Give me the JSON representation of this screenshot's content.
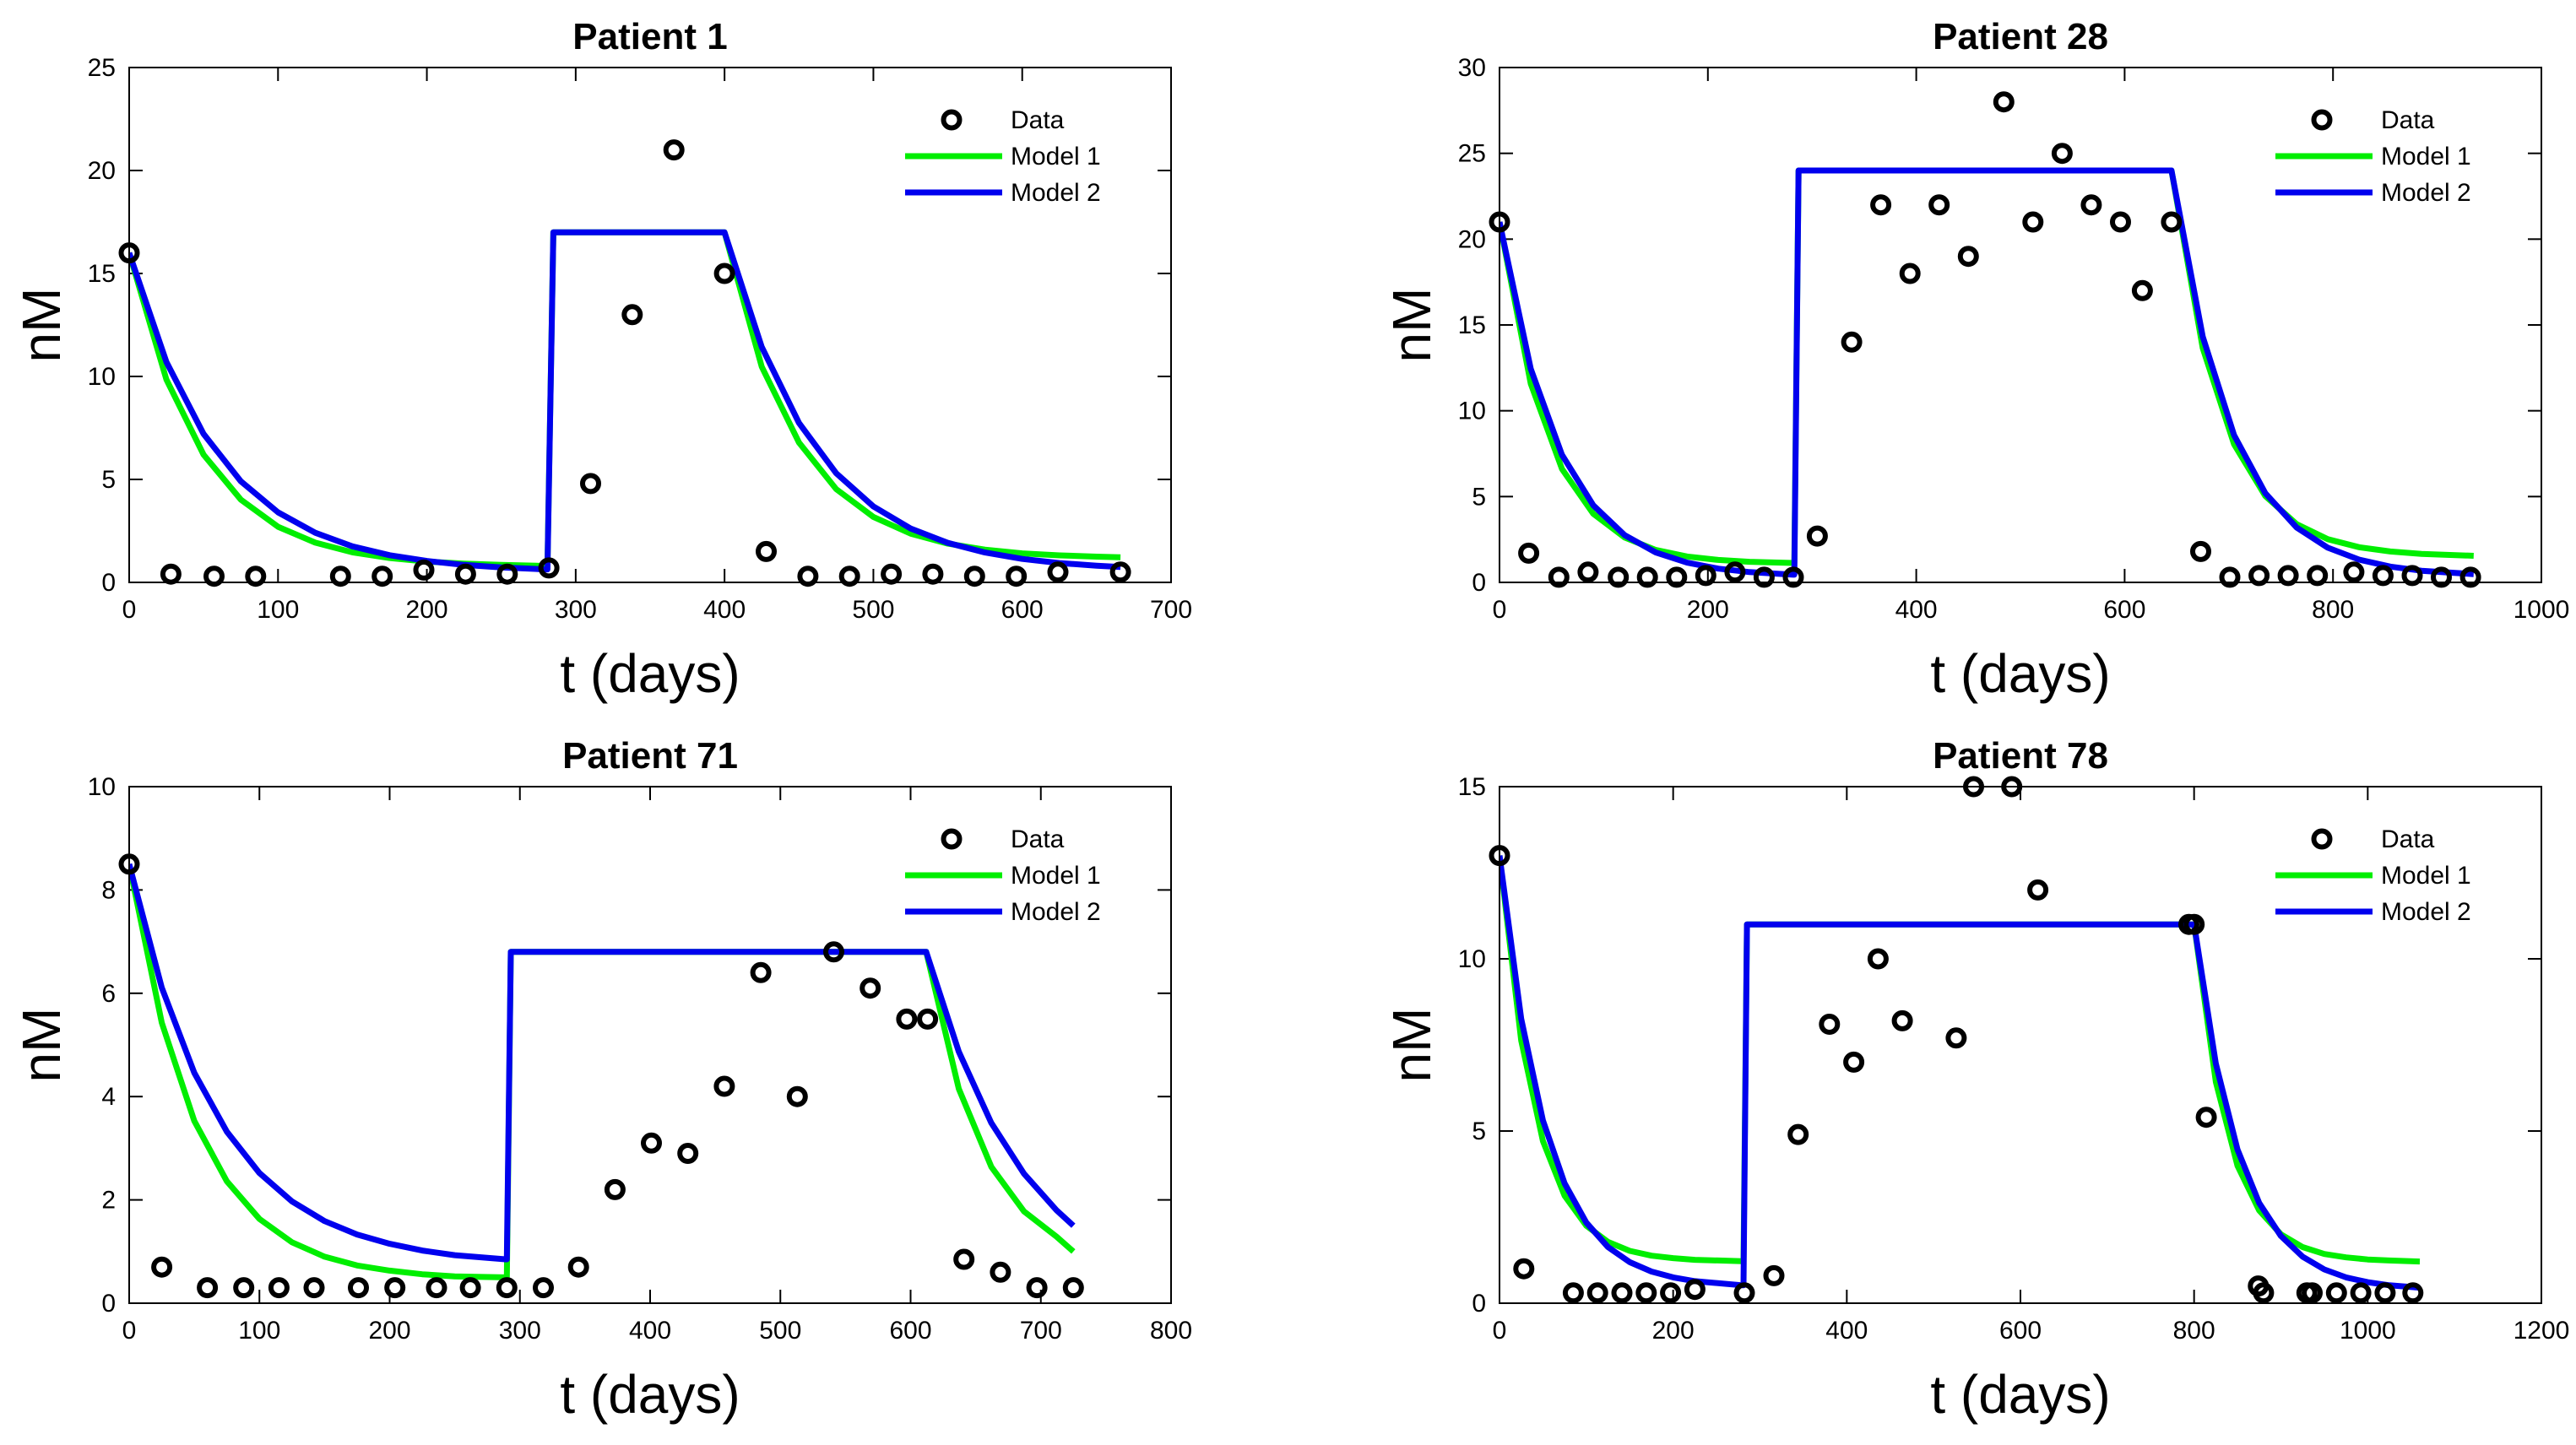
{
  "chart_data": [
    {
      "type": "line",
      "title": "Patient 1",
      "xlabel": "t (days)",
      "ylabel": "nM",
      "xlim": [
        0,
        700
      ],
      "ylim": [
        0,
        25
      ],
      "xticks": [
        0,
        100,
        200,
        300,
        400,
        500,
        600,
        700
      ],
      "yticks": [
        0,
        5,
        10,
        15,
        20,
        25
      ],
      "legend": [
        "Data",
        "Model 1",
        "Model 2"
      ],
      "legend_position": "top-right",
      "series": [
        {
          "name": "Data",
          "kind": "scatter",
          "color": "#000000",
          "x": [
            0,
            28,
            57,
            85,
            142,
            170,
            198,
            226,
            254,
            282,
            310,
            338,
            366,
            400,
            428,
            456,
            484,
            512,
            540,
            568,
            596,
            624,
            666
          ],
          "y": [
            16,
            0.4,
            0.3,
            0.3,
            0.3,
            0.3,
            0.6,
            0.4,
            0.4,
            0.7,
            4.8,
            13,
            21,
            15,
            1.5,
            0.3,
            0.3,
            0.4,
            0.4,
            0.3,
            0.3,
            0.5,
            0.5
          ]
        },
        {
          "name": "Model 1",
          "kind": "line",
          "color": "#00ee00",
          "x": [
            0,
            25,
            50,
            75,
            100,
            125,
            150,
            175,
            200,
            225,
            250,
            280,
            281,
            285,
            400,
            425,
            450,
            475,
            500,
            525,
            550,
            575,
            600,
            625,
            650,
            666
          ],
          "y": [
            16,
            9.85,
            6.2,
            4.02,
            2.7,
            1.93,
            1.46,
            1.18,
            1.01,
            0.91,
            0.85,
            0.8,
            0.8,
            17,
            17,
            10.47,
            6.79,
            4.53,
            3.18,
            2.37,
            1.88,
            1.59,
            1.41,
            1.31,
            1.25,
            1.22
          ]
        },
        {
          "name": "Model 2",
          "kind": "line",
          "color": "#0000ee",
          "x": [
            0,
            25,
            50,
            75,
            100,
            125,
            150,
            175,
            200,
            225,
            250,
            280,
            281,
            285,
            400,
            425,
            450,
            475,
            500,
            525,
            550,
            575,
            600,
            625,
            650,
            666
          ],
          "y": [
            16,
            10.7,
            7.21,
            4.91,
            3.4,
            2.41,
            1.75,
            1.32,
            1.04,
            0.85,
            0.73,
            0.63,
            0.63,
            17,
            17,
            11.43,
            7.74,
            5.3,
            3.69,
            2.62,
            1.92,
            1.45,
            1.14,
            0.94,
            0.81,
            0.75
          ]
        }
      ]
    },
    {
      "type": "line",
      "title": "Patient 28",
      "xlabel": "t (days)",
      "ylabel": "nM",
      "xlim": [
        0,
        1000
      ],
      "ylim": [
        0,
        30
      ],
      "xticks": [
        0,
        200,
        400,
        600,
        800,
        1000
      ],
      "yticks": [
        0,
        5,
        10,
        15,
        20,
        25,
        30
      ],
      "legend": [
        "Data",
        "Model 1",
        "Model 2"
      ],
      "legend_position": "top-right",
      "series": [
        {
          "name": "Data",
          "kind": "scatter",
          "color": "#000000",
          "x": [
            0,
            28,
            57,
            85,
            114,
            142,
            170,
            198,
            226,
            254,
            282,
            305,
            338,
            366,
            394,
            422,
            450,
            484,
            512,
            540,
            568,
            596,
            617,
            645,
            673,
            701,
            729,
            757,
            785,
            820,
            848,
            876,
            904,
            932
          ],
          "y": [
            21,
            1.7,
            0.3,
            0.6,
            0.3,
            0.3,
            0.3,
            0.4,
            0.6,
            0.3,
            0.3,
            2.7,
            14,
            22,
            18,
            22,
            19,
            28,
            21,
            25,
            22,
            21,
            17,
            21,
            1.8,
            0.3,
            0.4,
            0.4,
            0.4,
            0.6,
            0.4,
            0.4,
            0.3,
            0.3
          ]
        },
        {
          "name": "Model 1",
          "kind": "line",
          "color": "#00ee00",
          "x": [
            0,
            30,
            60,
            90,
            120,
            150,
            180,
            210,
            240,
            282,
            283,
            287,
            645,
            675,
            705,
            735,
            765,
            795,
            825,
            855,
            885,
            935
          ],
          "y": [
            21,
            11.58,
            6.61,
            4.0,
            2.62,
            1.89,
            1.51,
            1.31,
            1.2,
            1.13,
            1.13,
            24,
            24,
            13.65,
            8.05,
            5.03,
            3.4,
            2.52,
            2.05,
            1.8,
            1.66,
            1.55
          ]
        },
        {
          "name": "Model 2",
          "kind": "line",
          "color": "#0000ee",
          "x": [
            0,
            30,
            60,
            90,
            120,
            150,
            180,
            210,
            240,
            282,
            283,
            287,
            645,
            675,
            705,
            735,
            765,
            795,
            825,
            855,
            885,
            935
          ],
          "y": [
            21,
            12.45,
            7.43,
            4.49,
            2.76,
            1.74,
            1.15,
            0.8,
            0.6,
            0.45,
            0.45,
            24,
            24,
            14.32,
            8.58,
            5.2,
            3.2,
            2.02,
            1.33,
            0.92,
            0.68,
            0.48
          ]
        }
      ]
    },
    {
      "type": "line",
      "title": "Patient 71",
      "xlabel": "t (days)",
      "ylabel": "nM",
      "xlim": [
        0,
        800
      ],
      "ylim": [
        0,
        10
      ],
      "xticks": [
        0,
        100,
        200,
        300,
        400,
        500,
        600,
        700,
        800
      ],
      "yticks": [
        0,
        2,
        4,
        6,
        8,
        10
      ],
      "legend": [
        "Data",
        "Model 1",
        "Model 2"
      ],
      "legend_position": "top-right",
      "series": [
        {
          "name": "Data",
          "kind": "scatter",
          "color": "#000000",
          "x": [
            0,
            25,
            60,
            88,
            115,
            142,
            176,
            204,
            236,
            262,
            290,
            318,
            345,
            373,
            401,
            429,
            457,
            485,
            513,
            541,
            569,
            597,
            613,
            641,
            669,
            697,
            725
          ],
          "y": [
            8.5,
            0.7,
            0.3,
            0.3,
            0.3,
            0.3,
            0.3,
            0.3,
            0.3,
            0.3,
            0.3,
            0.3,
            0.7,
            2.2,
            3.1,
            2.9,
            4.2,
            6.4,
            4.0,
            6.8,
            6.1,
            5.5,
            5.5,
            0.85,
            0.6,
            0.3,
            0.3
          ]
        },
        {
          "name": "Model 1",
          "kind": "line",
          "color": "#00ee00",
          "x": [
            0,
            25,
            50,
            75,
            100,
            125,
            150,
            175,
            200,
            225,
            250,
            289,
            290,
            293,
            612,
            637,
            662,
            687,
            712,
            725
          ],
          "y": [
            8.5,
            5.43,
            3.53,
            2.36,
            1.63,
            1.18,
            0.9,
            0.73,
            0.63,
            0.56,
            0.52,
            0.5,
            0.5,
            6.8,
            6.8,
            4.15,
            2.64,
            1.78,
            1.29,
            1.0
          ]
        },
        {
          "name": "Model 2",
          "kind": "line",
          "color": "#0000ee",
          "x": [
            0,
            25,
            50,
            75,
            100,
            125,
            150,
            175,
            200,
            225,
            250,
            289,
            290,
            293,
            612,
            637,
            662,
            687,
            712,
            725
          ],
          "y": [
            8.5,
            6.11,
            4.46,
            3.32,
            2.52,
            1.97,
            1.59,
            1.33,
            1.15,
            1.02,
            0.93,
            0.85,
            0.85,
            6.8,
            6.8,
            4.87,
            3.49,
            2.51,
            1.8,
            1.5
          ]
        }
      ]
    },
    {
      "type": "line",
      "title": "Patient 78",
      "xlabel": "t (days)",
      "ylabel": "nM",
      "xlim": [
        0,
        1200
      ],
      "ylim": [
        0,
        15
      ],
      "xticks": [
        0,
        200,
        400,
        600,
        800,
        1000,
        1200
      ],
      "yticks": [
        0,
        5,
        10,
        15
      ],
      "legend": [
        "Data",
        "Model 1",
        "Model 2"
      ],
      "legend_position": "top-right",
      "series": [
        {
          "name": "Data",
          "kind": "scatter",
          "color": "#000000",
          "x": [
            0,
            28,
            85,
            113,
            141,
            169,
            197,
            225,
            282,
            316,
            344,
            380,
            408,
            436,
            464,
            526,
            546,
            590,
            620,
            794,
            800,
            814,
            874,
            880,
            930,
            936,
            964,
            992,
            1020,
            1052
          ],
          "y": [
            13,
            1.0,
            0.3,
            0.3,
            0.3,
            0.3,
            0.3,
            0.4,
            0.3,
            0.8,
            4.9,
            8.1,
            7.0,
            10,
            8.2,
            7.7,
            15,
            15,
            12,
            11,
            11,
            5.4,
            0.5,
            0.3,
            0.3,
            0.3,
            0.3,
            0.3,
            0.3,
            0.3
          ]
        },
        {
          "name": "Model 1",
          "kind": "line",
          "color": "#00ee00",
          "x": [
            0,
            25,
            50,
            75,
            100,
            125,
            150,
            175,
            200,
            225,
            280,
            281,
            285,
            800,
            825,
            850,
            875,
            900,
            925,
            950,
            975,
            1000,
            1025,
            1060
          ],
          "y": [
            13,
            7.63,
            4.71,
            3.12,
            2.25,
            1.78,
            1.52,
            1.38,
            1.31,
            1.26,
            1.22,
            1.22,
            11,
            11,
            6.43,
            3.99,
            2.69,
            2.0,
            1.63,
            1.43,
            1.33,
            1.27,
            1.24,
            1.21
          ]
        },
        {
          "name": "Model 2",
          "kind": "line",
          "color": "#0000ee",
          "x": [
            0,
            25,
            50,
            75,
            100,
            125,
            150,
            175,
            200,
            225,
            280,
            281,
            285,
            800,
            825,
            850,
            875,
            900,
            925,
            950,
            975,
            1000,
            1025,
            1060
          ],
          "y": [
            13,
            8.26,
            5.31,
            3.48,
            2.34,
            1.63,
            1.19,
            0.92,
            0.75,
            0.64,
            0.52,
            0.52,
            11,
            11,
            6.96,
            4.46,
            2.91,
            1.95,
            1.35,
            0.98,
            0.75,
            0.61,
            0.52,
            0.45
          ]
        }
      ]
    }
  ]
}
